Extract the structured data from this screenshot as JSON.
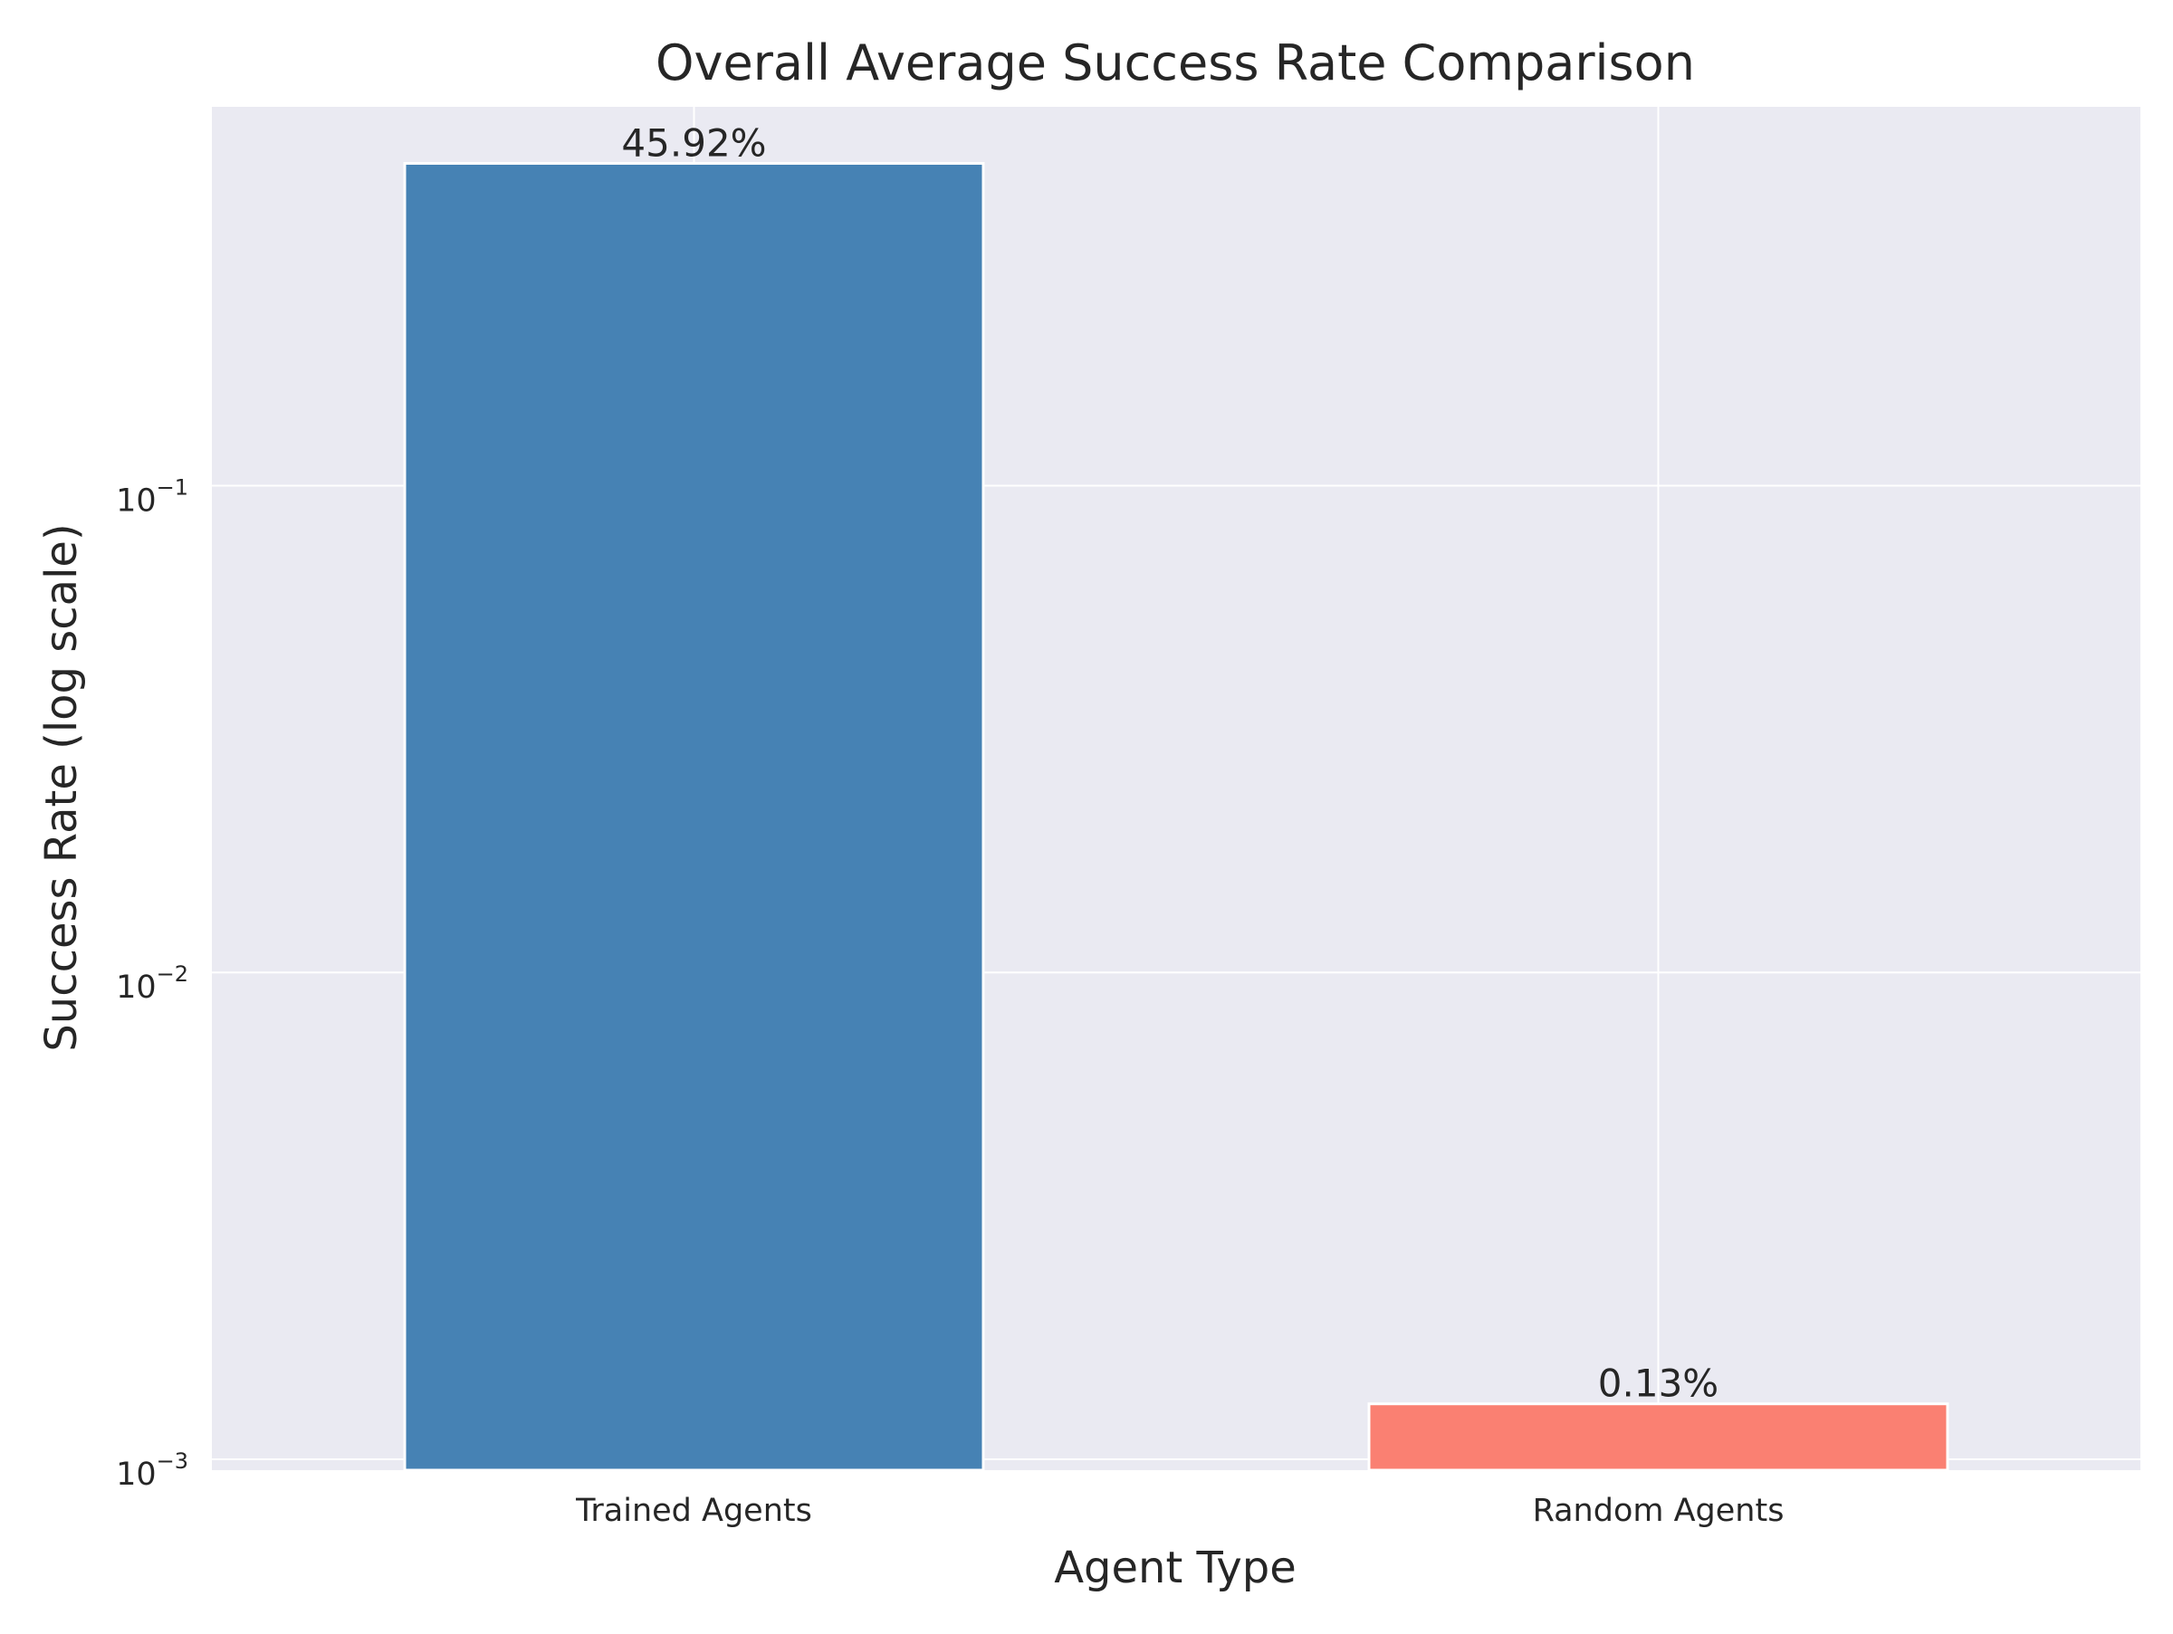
{
  "chart_data": {
    "type": "bar",
    "title": "Overall Average Success Rate Comparison",
    "xlabel": "Agent Type",
    "ylabel": "Success Rate (log scale)",
    "y_scale": "log",
    "ylim": [
      0.00095,
      0.6
    ],
    "categories": [
      "Trained Agents",
      "Random Agents"
    ],
    "values": [
      0.4592,
      0.0013
    ],
    "data_labels": [
      "45.92%",
      "0.13%"
    ],
    "bar_colors": [
      "#4682b4",
      "#fa8072"
    ],
    "y_ticks": [
      {
        "value": 0.1,
        "base": "10",
        "exponent": "−1"
      },
      {
        "value": 0.01,
        "base": "10",
        "exponent": "−2"
      },
      {
        "value": 0.001,
        "base": "10",
        "exponent": "−3"
      }
    ],
    "grid": true,
    "plot_background": "#eaeaf2",
    "grid_color": "#ffffff"
  }
}
